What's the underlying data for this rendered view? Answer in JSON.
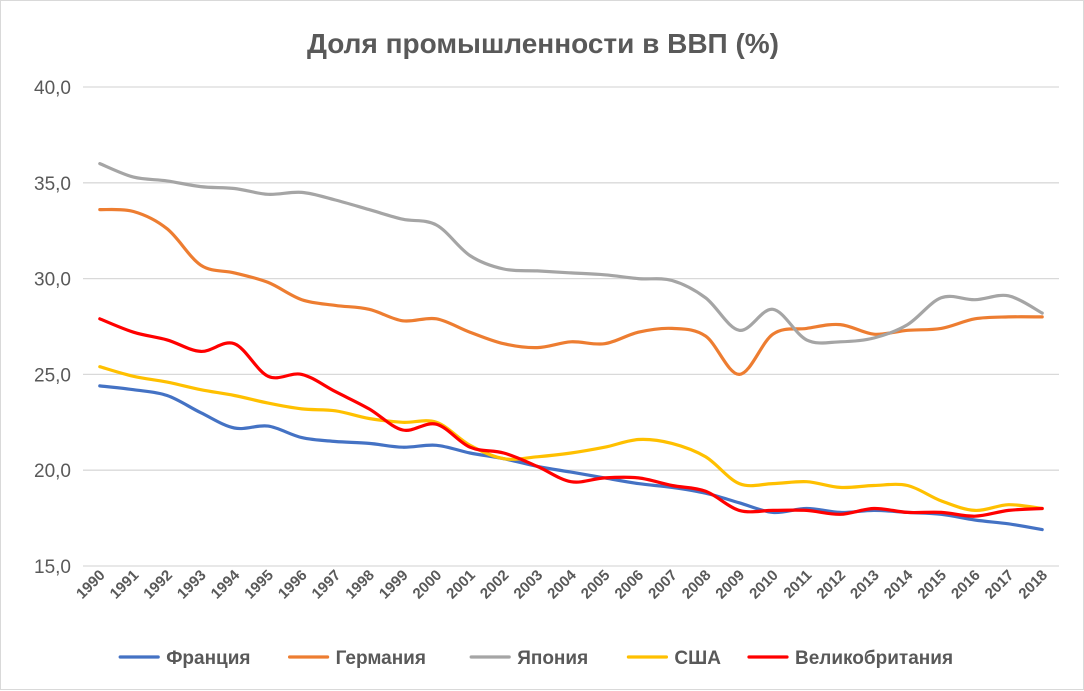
{
  "chart_data": {
    "type": "line",
    "title": "Доля промышленности в ВВП (%)",
    "xlabel": "",
    "ylabel": "",
    "ylim": [
      15,
      40
    ],
    "y_ticks": [
      "15,0",
      "20,0",
      "25,0",
      "30,0",
      "35,0",
      "40,0"
    ],
    "grid": true,
    "legend_position": "bottom",
    "categories": [
      "1990",
      "1991",
      "1992",
      "1993",
      "1994",
      "1995",
      "1996",
      "1997",
      "1998",
      "1999",
      "2000",
      "2001",
      "2002",
      "2003",
      "2004",
      "2005",
      "2006",
      "2007",
      "2008",
      "2009",
      "2010",
      "2011",
      "2012",
      "2013",
      "2014",
      "2015",
      "2016",
      "2017",
      "2018"
    ],
    "series": [
      {
        "name": "Франция",
        "color": "#4472c4",
        "values": [
          24.4,
          24.2,
          23.9,
          23.0,
          22.2,
          22.3,
          21.7,
          21.5,
          21.4,
          21.2,
          21.3,
          20.9,
          20.6,
          20.2,
          19.9,
          19.6,
          19.3,
          19.1,
          18.8,
          18.3,
          17.8,
          18.0,
          17.8,
          17.9,
          17.8,
          17.7,
          17.4,
          17.2,
          16.9
        ]
      },
      {
        "name": "Германия",
        "color": "#ed7d31",
        "values": [
          33.6,
          33.5,
          32.6,
          30.7,
          30.3,
          29.8,
          28.9,
          28.6,
          28.4,
          27.8,
          27.9,
          27.2,
          26.6,
          26.4,
          26.7,
          26.6,
          27.2,
          27.4,
          27.0,
          25.0,
          27.1,
          27.4,
          27.6,
          27.1,
          27.3,
          27.4,
          27.9,
          28.0,
          28.0
        ]
      },
      {
        "name": "Япония",
        "color": "#a5a5a5",
        "values": [
          36.0,
          35.3,
          35.1,
          34.8,
          34.7,
          34.4,
          34.5,
          34.1,
          33.6,
          33.1,
          32.8,
          31.2,
          30.5,
          30.4,
          30.3,
          30.2,
          30.0,
          29.9,
          29.0,
          27.3,
          28.4,
          26.8,
          26.7,
          26.9,
          27.6,
          29.0,
          28.9,
          29.1,
          28.2
        ]
      },
      {
        "name": "США",
        "color": "#ffc000",
        "values": [
          25.4,
          24.9,
          24.6,
          24.2,
          23.9,
          23.5,
          23.2,
          23.1,
          22.7,
          22.5,
          22.5,
          21.3,
          20.6,
          20.7,
          20.9,
          21.2,
          21.6,
          21.4,
          20.7,
          19.3,
          19.3,
          19.4,
          19.1,
          19.2,
          19.2,
          18.4,
          17.9,
          18.2,
          18.0
        ]
      },
      {
        "name": "Великобритания",
        "color": "#ff0000",
        "values": [
          27.9,
          27.2,
          26.8,
          26.2,
          26.6,
          24.9,
          25.0,
          24.1,
          23.2,
          22.1,
          22.4,
          21.2,
          20.9,
          20.2,
          19.4,
          19.6,
          19.6,
          19.2,
          18.9,
          17.9,
          17.9,
          17.9,
          17.7,
          18.0,
          17.8,
          17.8,
          17.6,
          17.9,
          18.0
        ]
      }
    ]
  }
}
